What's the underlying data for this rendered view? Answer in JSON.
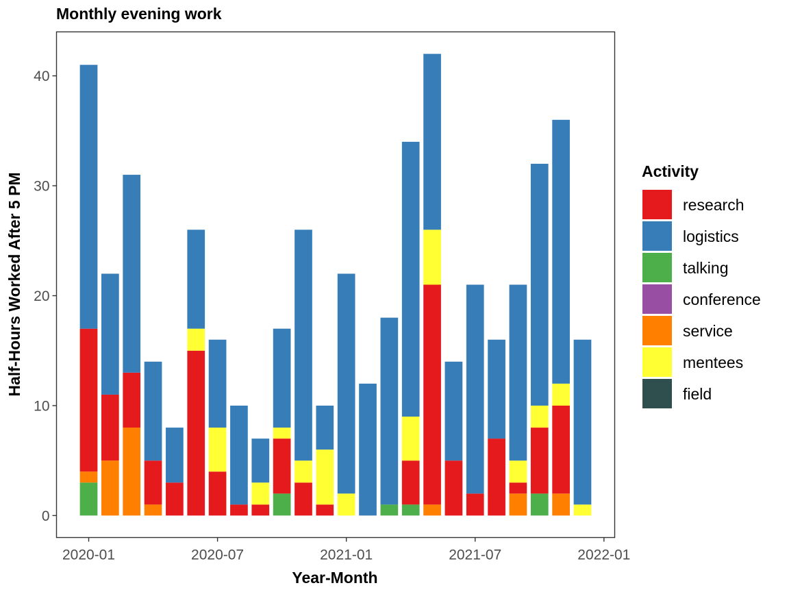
{
  "chart_data": {
    "type": "bar",
    "stacked": true,
    "title": "Monthly evening work",
    "xlabel": "Year-Month",
    "ylabel": "Half-Hours Worked After 5 PM",
    "ylim": [
      -2,
      44
    ],
    "yticks": [
      0,
      10,
      20,
      30,
      40
    ],
    "xtick_labels": [
      "2020-01",
      "2020-07",
      "2021-01",
      "2021-07",
      "2022-01"
    ],
    "xtick_months": [
      0,
      6,
      12,
      18,
      24
    ],
    "xlim_months": [
      -1.5,
      24.5
    ],
    "grid": false,
    "legend_position": "right",
    "legend_title": "Activity",
    "categories": [
      "2020-01",
      "2020-02",
      "2020-03",
      "2020-04",
      "2020-05",
      "2020-06",
      "2020-07",
      "2020-08",
      "2020-09",
      "2020-10",
      "2020-11",
      "2020-12",
      "2021-01",
      "2021-02",
      "2021-03",
      "2021-04",
      "2021-05",
      "2021-06",
      "2021-07",
      "2021-08",
      "2021-09",
      "2021-10",
      "2021-11",
      "2021-12"
    ],
    "stack_order_bottom_to_top": [
      "talking",
      "service",
      "research",
      "mentees",
      "logistics"
    ],
    "series": [
      {
        "name": "research",
        "color": "#E41A1C",
        "values": [
          13,
          6,
          5,
          4,
          3,
          15,
          4,
          1,
          1,
          5,
          3,
          1,
          0,
          0,
          0,
          4,
          20,
          5,
          2,
          7,
          1,
          6,
          8,
          0
        ]
      },
      {
        "name": "logistics",
        "color": "#377EB8",
        "values": [
          24,
          11,
          18,
          9,
          5,
          9,
          8,
          9,
          4,
          9,
          21,
          4,
          20,
          12,
          17,
          25,
          16,
          9,
          19,
          9,
          16,
          22,
          24,
          15
        ]
      },
      {
        "name": "talking",
        "color": "#4DAF4A",
        "values": [
          3,
          0,
          0,
          0,
          0,
          0,
          0,
          0,
          0,
          2,
          0,
          0,
          0,
          0,
          1,
          1,
          0,
          0,
          0,
          0,
          0,
          2,
          0,
          0
        ]
      },
      {
        "name": "conference",
        "color": "#984EA3",
        "values": [
          0,
          0,
          0,
          0,
          0,
          0,
          0,
          0,
          0,
          0,
          0,
          0,
          0,
          0,
          0,
          0,
          0,
          0,
          0,
          0,
          0,
          0,
          0,
          0
        ]
      },
      {
        "name": "service",
        "color": "#FF7F00",
        "values": [
          1,
          5,
          8,
          1,
          0,
          0,
          0,
          0,
          0,
          0,
          0,
          0,
          0,
          0,
          0,
          0,
          1,
          0,
          0,
          0,
          2,
          0,
          2,
          0
        ]
      },
      {
        "name": "mentees",
        "color": "#FFFF33",
        "values": [
          0,
          0,
          0,
          0,
          0,
          2,
          4,
          0,
          2,
          1,
          2,
          5,
          2,
          0,
          0,
          4,
          5,
          0,
          0,
          0,
          2,
          2,
          2,
          1
        ]
      },
      {
        "name": "field",
        "color": "#2F4F4F",
        "values": [
          0,
          0,
          0,
          0,
          0,
          0,
          0,
          0,
          0,
          0,
          0,
          0,
          0,
          0,
          0,
          0,
          0,
          0,
          0,
          0,
          0,
          0,
          0,
          0
        ]
      }
    ]
  }
}
